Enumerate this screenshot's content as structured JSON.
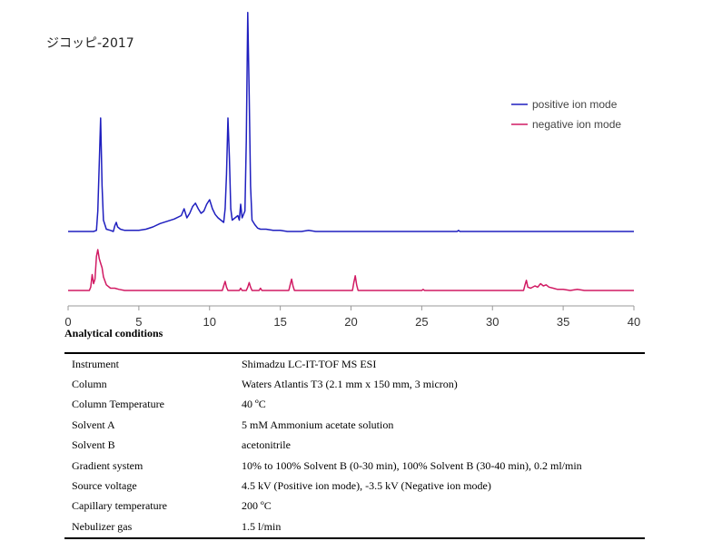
{
  "chart_data": {
    "type": "line",
    "title": "ジコッピ-2017",
    "xlabel": "",
    "ylabel": "",
    "xlim": [
      0,
      40
    ],
    "x_ticks": [
      0,
      5,
      10,
      15,
      20,
      25,
      30,
      35,
      40
    ],
    "legend_position": "top-right",
    "grid": false,
    "series": [
      {
        "name": "positive ion mode",
        "color": "#1f1fbf",
        "baseline": 0,
        "points": [
          [
            0,
            0
          ],
          [
            1.8,
            0
          ],
          [
            2.0,
            1
          ],
          [
            2.1,
            18
          ],
          [
            2.2,
            60
          ],
          [
            2.3,
            100
          ],
          [
            2.4,
            40
          ],
          [
            2.5,
            10
          ],
          [
            2.7,
            2
          ],
          [
            3.0,
            1
          ],
          [
            3.2,
            0
          ],
          [
            3.3,
            5
          ],
          [
            3.4,
            8
          ],
          [
            3.5,
            4
          ],
          [
            3.7,
            2
          ],
          [
            4.0,
            1
          ],
          [
            4.5,
            1
          ],
          [
            5.0,
            1
          ],
          [
            5.5,
            2
          ],
          [
            6.0,
            4
          ],
          [
            6.5,
            7
          ],
          [
            7.0,
            9
          ],
          [
            7.5,
            11
          ],
          [
            8.0,
            14
          ],
          [
            8.2,
            20
          ],
          [
            8.4,
            12
          ],
          [
            8.6,
            16
          ],
          [
            8.8,
            22
          ],
          [
            9.0,
            25
          ],
          [
            9.2,
            20
          ],
          [
            9.4,
            16
          ],
          [
            9.6,
            18
          ],
          [
            9.8,
            24
          ],
          [
            10.0,
            28
          ],
          [
            10.2,
            20
          ],
          [
            10.4,
            15
          ],
          [
            10.6,
            12
          ],
          [
            10.8,
            10
          ],
          [
            11.0,
            8
          ],
          [
            11.1,
            20
          ],
          [
            11.2,
            50
          ],
          [
            11.3,
            100
          ],
          [
            11.4,
            65
          ],
          [
            11.5,
            20
          ],
          [
            11.6,
            10
          ],
          [
            11.8,
            12
          ],
          [
            12.0,
            14
          ],
          [
            12.1,
            10
          ],
          [
            12.2,
            24
          ],
          [
            12.3,
            12
          ],
          [
            12.5,
            18
          ],
          [
            12.6,
            80
          ],
          [
            12.7,
            193
          ],
          [
            12.8,
            120
          ],
          [
            12.9,
            40
          ],
          [
            13.0,
            10
          ],
          [
            13.2,
            6
          ],
          [
            13.4,
            3
          ],
          [
            13.6,
            2
          ],
          [
            14.0,
            2
          ],
          [
            14.5,
            1
          ],
          [
            15.0,
            1
          ],
          [
            15.5,
            0
          ],
          [
            16.5,
            0
          ],
          [
            17.0,
            1
          ],
          [
            17.5,
            0
          ],
          [
            27.5,
            0
          ],
          [
            27.6,
            1
          ],
          [
            27.7,
            0
          ],
          [
            40,
            0
          ]
        ]
      },
      {
        "name": "negative ion mode",
        "color": "#d11a63",
        "baseline": 0,
        "points": [
          [
            0,
            0
          ],
          [
            1.5,
            0
          ],
          [
            1.6,
            3
          ],
          [
            1.7,
            14
          ],
          [
            1.8,
            6
          ],
          [
            1.9,
            10
          ],
          [
            2.0,
            30
          ],
          [
            2.1,
            36
          ],
          [
            2.2,
            28
          ],
          [
            2.3,
            24
          ],
          [
            2.4,
            20
          ],
          [
            2.5,
            12
          ],
          [
            2.7,
            5
          ],
          [
            3.0,
            2
          ],
          [
            3.3,
            2
          ],
          [
            3.6,
            1
          ],
          [
            4.0,
            0
          ],
          [
            10.9,
            0
          ],
          [
            11.0,
            4
          ],
          [
            11.1,
            8
          ],
          [
            11.2,
            3
          ],
          [
            11.3,
            0
          ],
          [
            12.1,
            0
          ],
          [
            12.2,
            2
          ],
          [
            12.3,
            0
          ],
          [
            12.6,
            0
          ],
          [
            12.7,
            3
          ],
          [
            12.8,
            7
          ],
          [
            12.9,
            3
          ],
          [
            13.0,
            0
          ],
          [
            13.5,
            0
          ],
          [
            13.6,
            2
          ],
          [
            13.7,
            0
          ],
          [
            15.6,
            0
          ],
          [
            15.7,
            5
          ],
          [
            15.8,
            10
          ],
          [
            15.9,
            4
          ],
          [
            16.0,
            0
          ],
          [
            20.1,
            0
          ],
          [
            20.2,
            7
          ],
          [
            20.3,
            13
          ],
          [
            20.4,
            5
          ],
          [
            20.5,
            0
          ],
          [
            25.0,
            0
          ],
          [
            25.1,
            1
          ],
          [
            25.2,
            0
          ],
          [
            32.2,
            0
          ],
          [
            32.3,
            5
          ],
          [
            32.4,
            9
          ],
          [
            32.5,
            3
          ],
          [
            32.7,
            2
          ],
          [
            33.0,
            4
          ],
          [
            33.2,
            3
          ],
          [
            33.4,
            6
          ],
          [
            33.6,
            4
          ],
          [
            33.8,
            5
          ],
          [
            34.0,
            3
          ],
          [
            34.3,
            2
          ],
          [
            34.6,
            1
          ],
          [
            35.0,
            1
          ],
          [
            35.5,
            0
          ],
          [
            36.0,
            1
          ],
          [
            36.5,
            0
          ],
          [
            40,
            0
          ]
        ]
      }
    ]
  },
  "conditions": {
    "heading": "Analytical conditions",
    "rows": [
      {
        "label": "Instrument",
        "value": "Shimadzu LC-IT-TOF MS ESI"
      },
      {
        "label": "Column",
        "value": "Waters Atlantis T3 (2.1 mm x 150 mm, 3 micron)"
      },
      {
        "label": "Column Temperature",
        "value": "40 ºC"
      },
      {
        "label": "Solvent A",
        "value": "5 mM Ammonium acetate solution"
      },
      {
        "label": "Solvent B",
        "value": "acetonitrile"
      },
      {
        "label": "Gradient system",
        "value": "10% to 100% Solvent B (0-30 min), 100% Solvent B (30-40 min), 0.2 ml/min"
      },
      {
        "label": "Source voltage",
        "value": "4.5 kV (Positive ion mode), -3.5 kV (Negative ion mode)"
      },
      {
        "label": "Capillary temperature",
        "value": "200 ºC"
      },
      {
        "label": "Nebulizer gas",
        "value": "1.5 l/min"
      }
    ]
  }
}
